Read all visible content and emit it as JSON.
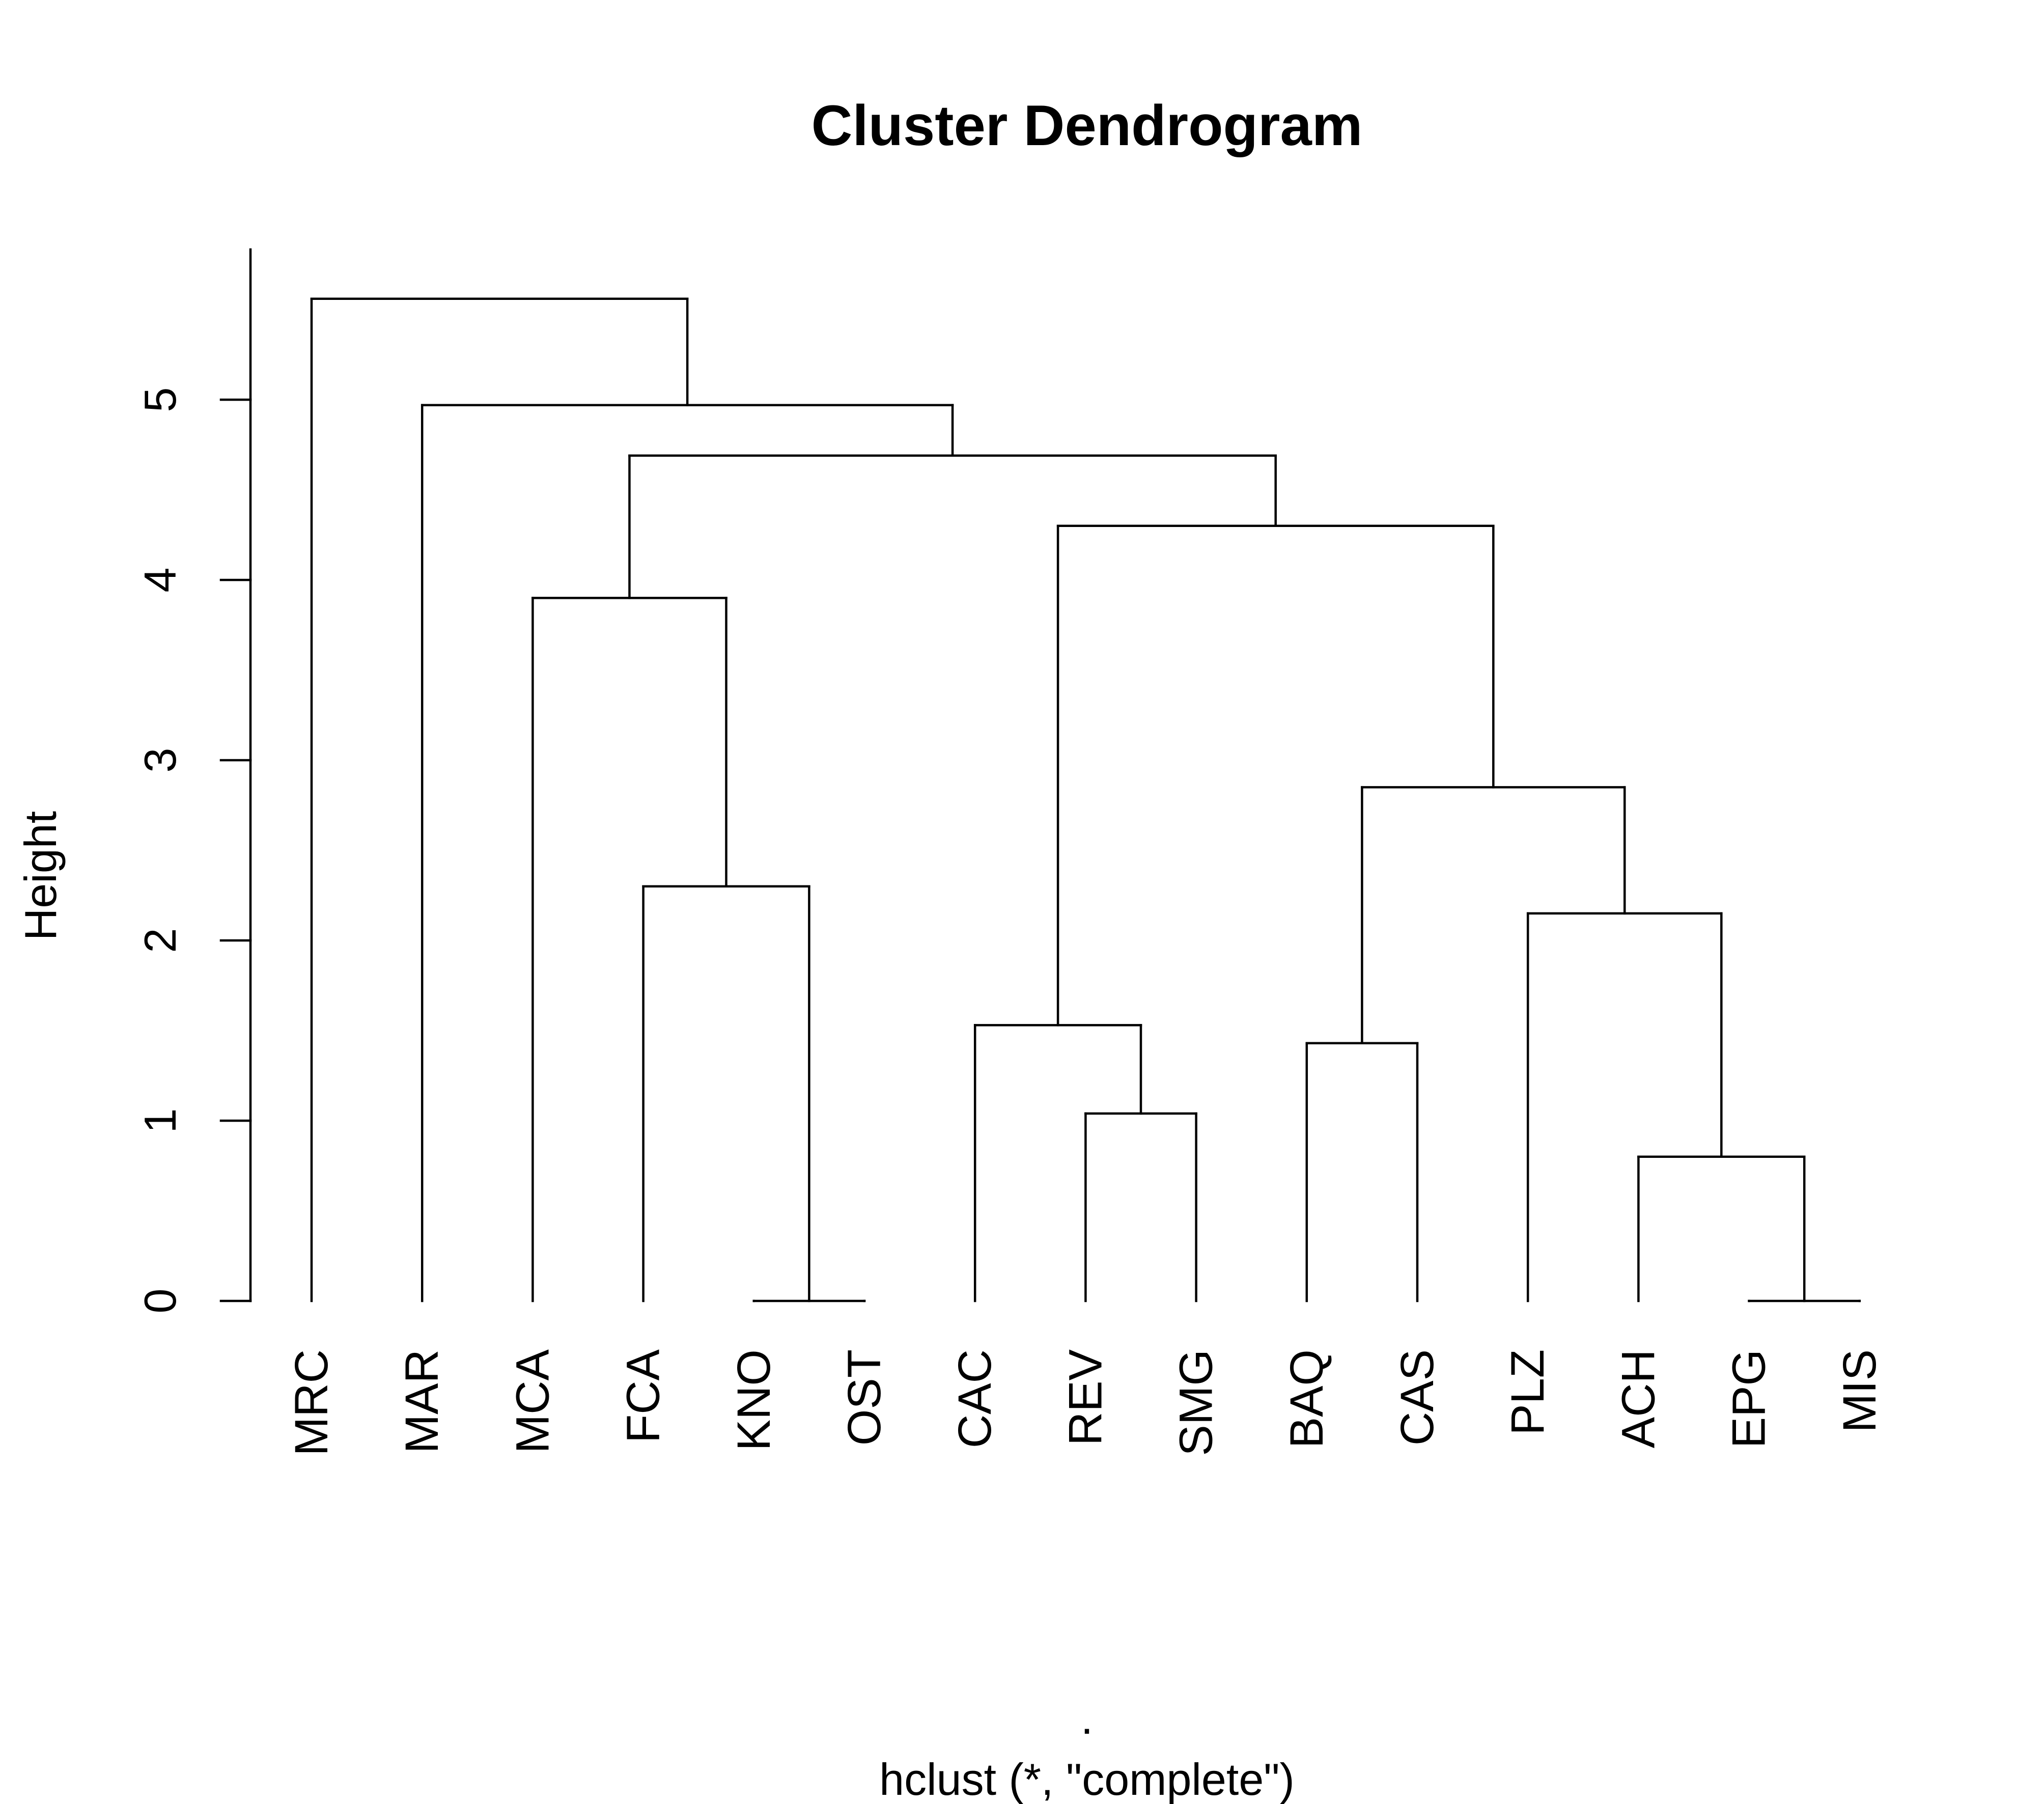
{
  "chart_data": {
    "type": "dendrogram",
    "title": "Cluster Dendrogram",
    "ylabel": "Height",
    "xlabel": ".",
    "sub": "hclust (*, \"complete\")",
    "ylim": [
      0,
      5.7
    ],
    "yticks": [
      0,
      1,
      2,
      3,
      4,
      5
    ],
    "leaves": [
      "MRC",
      "MAR",
      "MCA",
      "FCA",
      "KNO",
      "OST",
      "CAC",
      "REV",
      "SMG",
      "BAQ",
      "CAS",
      "PLZ",
      "ACH",
      "EPG",
      "MIS"
    ],
    "merges": [
      {
        "id": "m1",
        "left": "KNO",
        "right": "OST",
        "height": 0.0
      },
      {
        "id": "m2",
        "left": "EPG",
        "right": "MIS",
        "height": 0.0
      },
      {
        "id": "m3",
        "left": "ACH",
        "right": "m2",
        "height": 0.8
      },
      {
        "id": "m4",
        "left": "REV",
        "right": "SMG",
        "height": 1.04
      },
      {
        "id": "m5",
        "left": "BAQ",
        "right": "CAS",
        "height": 1.43
      },
      {
        "id": "m6",
        "left": "CAC",
        "right": "m4",
        "height": 1.53
      },
      {
        "id": "m7",
        "left": "PLZ",
        "right": "m3",
        "height": 2.15
      },
      {
        "id": "m8",
        "left": "FCA",
        "right": "m1",
        "height": 2.3
      },
      {
        "id": "m9",
        "left": "m5",
        "right": "m7",
        "height": 2.85
      },
      {
        "id": "m10",
        "left": "MCA",
        "right": "m8",
        "height": 3.9
      },
      {
        "id": "m11",
        "left": "m6",
        "right": "m9",
        "height": 4.3
      },
      {
        "id": "m12",
        "left": "m10",
        "right": "m11",
        "height": 4.69
      },
      {
        "id": "m13",
        "left": "MAR",
        "right": "m12",
        "height": 4.97
      },
      {
        "id": "m14",
        "left": "MRC",
        "right": "m13",
        "height": 5.56
      }
    ]
  }
}
